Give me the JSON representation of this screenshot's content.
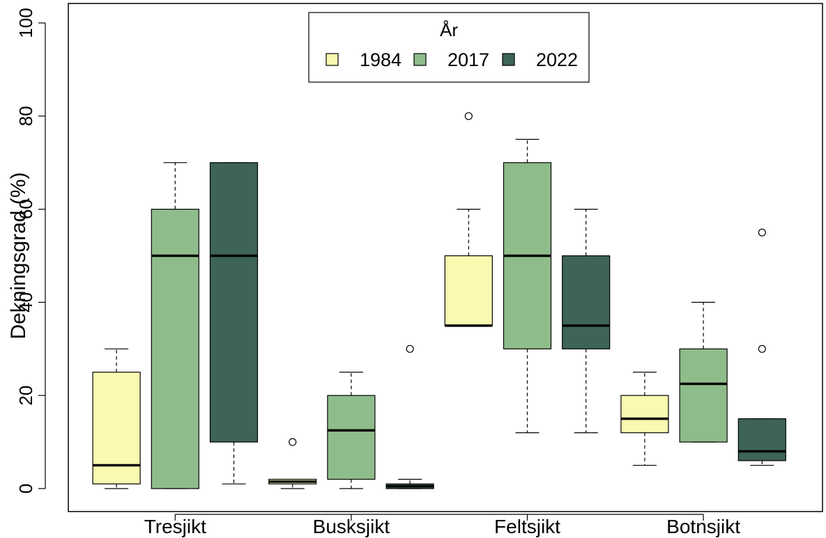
{
  "chart_data": {
    "type": "boxplot",
    "xlabel": "",
    "ylabel": "Dekningsgrad (%)",
    "ylim": [
      0,
      100
    ],
    "yticks": [
      0,
      20,
      40,
      60,
      80,
      100
    ],
    "grid": false,
    "categories": [
      "Tresjikt",
      "Busksjikt",
      "Feltsjikt",
      "Botnsjikt"
    ],
    "legend": {
      "title": "År",
      "placement": "top-center",
      "entries": [
        "1984",
        "2017",
        "2022"
      ]
    },
    "colors": {
      "1984": "#f9f9b0",
      "2017": "#8fbc8b",
      "2022": "#3d6456"
    },
    "series": [
      {
        "name": "1984",
        "boxes": [
          {
            "whisker_low": 0,
            "q1": 1,
            "median": 5,
            "q3": 25,
            "whisker_high": 30,
            "outliers": []
          },
          {
            "whisker_low": 0,
            "q1": 1,
            "median": 1.5,
            "q3": 2,
            "whisker_high": 2,
            "outliers": [
              10
            ]
          },
          {
            "whisker_low": 35,
            "q1": 35,
            "median": 35,
            "q3": 50,
            "whisker_high": 60,
            "outliers": [
              80
            ]
          },
          {
            "whisker_low": 5,
            "q1": 12,
            "median": 15,
            "q3": 20,
            "whisker_high": 25,
            "outliers": []
          }
        ]
      },
      {
        "name": "2017",
        "boxes": [
          {
            "whisker_low": 0,
            "q1": 0,
            "median": 50,
            "q3": 60,
            "whisker_high": 70,
            "outliers": []
          },
          {
            "whisker_low": 0,
            "q1": 2,
            "median": 12.5,
            "q3": 20,
            "whisker_high": 25,
            "outliers": []
          },
          {
            "whisker_low": 12,
            "q1": 30,
            "median": 50,
            "q3": 70,
            "whisker_high": 75,
            "outliers": []
          },
          {
            "whisker_low": 10,
            "q1": 10,
            "median": 22.5,
            "q3": 30,
            "whisker_high": 40,
            "outliers": []
          }
        ]
      },
      {
        "name": "2022",
        "boxes": [
          {
            "whisker_low": 1,
            "q1": 10,
            "median": 50,
            "q3": 70,
            "whisker_high": 70,
            "outliers": []
          },
          {
            "whisker_low": 0,
            "q1": 0,
            "median": 0.5,
            "q3": 1,
            "whisker_high": 2,
            "outliers": [
              30
            ]
          },
          {
            "whisker_low": 12,
            "q1": 30,
            "median": 35,
            "q3": 50,
            "whisker_high": 60,
            "outliers": []
          },
          {
            "whisker_low": 5,
            "q1": 6,
            "median": 8,
            "q3": 15,
            "whisker_high": 15,
            "outliers": [
              30,
              55
            ]
          }
        ]
      }
    ]
  }
}
